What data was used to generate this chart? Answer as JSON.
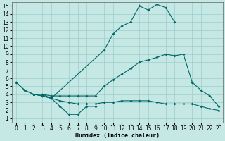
{
  "xlabel": "Humidex (Indice chaleur)",
  "background_color": "#c5e8e4",
  "grid_color": "#9ecfcc",
  "line_color": "#006868",
  "xlim": [
    -0.5,
    23.5
  ],
  "ylim": [
    0.5,
    15.5
  ],
  "xticks": [
    0,
    1,
    2,
    3,
    4,
    5,
    6,
    7,
    8,
    9,
    10,
    11,
    12,
    13,
    14,
    15,
    16,
    17,
    18,
    19,
    20,
    21,
    22,
    23
  ],
  "yticks": [
    1,
    2,
    3,
    4,
    5,
    6,
    7,
    8,
    9,
    10,
    11,
    12,
    13,
    14,
    15
  ],
  "lines": [
    {
      "x": [
        0,
        1,
        2,
        3,
        4,
        10,
        11,
        12,
        13,
        14,
        15,
        16,
        17,
        18
      ],
      "y": [
        5.5,
        4.5,
        4.0,
        4.0,
        3.5,
        9.5,
        11.5,
        12.5,
        13.0,
        15.0,
        14.5,
        15.2,
        14.8,
        13.0
      ]
    },
    {
      "x": [
        0,
        1,
        2,
        3,
        4,
        5,
        6,
        7,
        8,
        9,
        10,
        11,
        12,
        13,
        14,
        15,
        16,
        17,
        18,
        19,
        20,
        21,
        22,
        23
      ],
      "y": [
        5.5,
        4.5,
        4.0,
        4.0,
        3.8,
        3.8,
        3.8,
        3.8,
        3.8,
        3.8,
        5.0,
        5.8,
        6.5,
        7.2,
        8.0,
        8.3,
        8.6,
        9.0,
        8.8,
        9.0,
        5.5,
        4.5,
        3.8,
        2.5
      ]
    },
    {
      "x": [
        2,
        3,
        4,
        5,
        6,
        7,
        8,
        9
      ],
      "y": [
        4.0,
        3.8,
        3.5,
        2.5,
        1.5,
        1.5,
        2.5,
        2.5
      ]
    },
    {
      "x": [
        2,
        3,
        4,
        5,
        6,
        7,
        8,
        9,
        10,
        11,
        12,
        13,
        14,
        15,
        16,
        17,
        18,
        19,
        20,
        21,
        22,
        23
      ],
      "y": [
        4.0,
        3.8,
        3.5,
        3.2,
        3.0,
        2.8,
        2.8,
        2.8,
        3.0,
        3.0,
        3.2,
        3.2,
        3.2,
        3.2,
        3.0,
        2.8,
        2.8,
        2.8,
        2.8,
        2.5,
        2.2,
        2.0
      ]
    }
  ]
}
